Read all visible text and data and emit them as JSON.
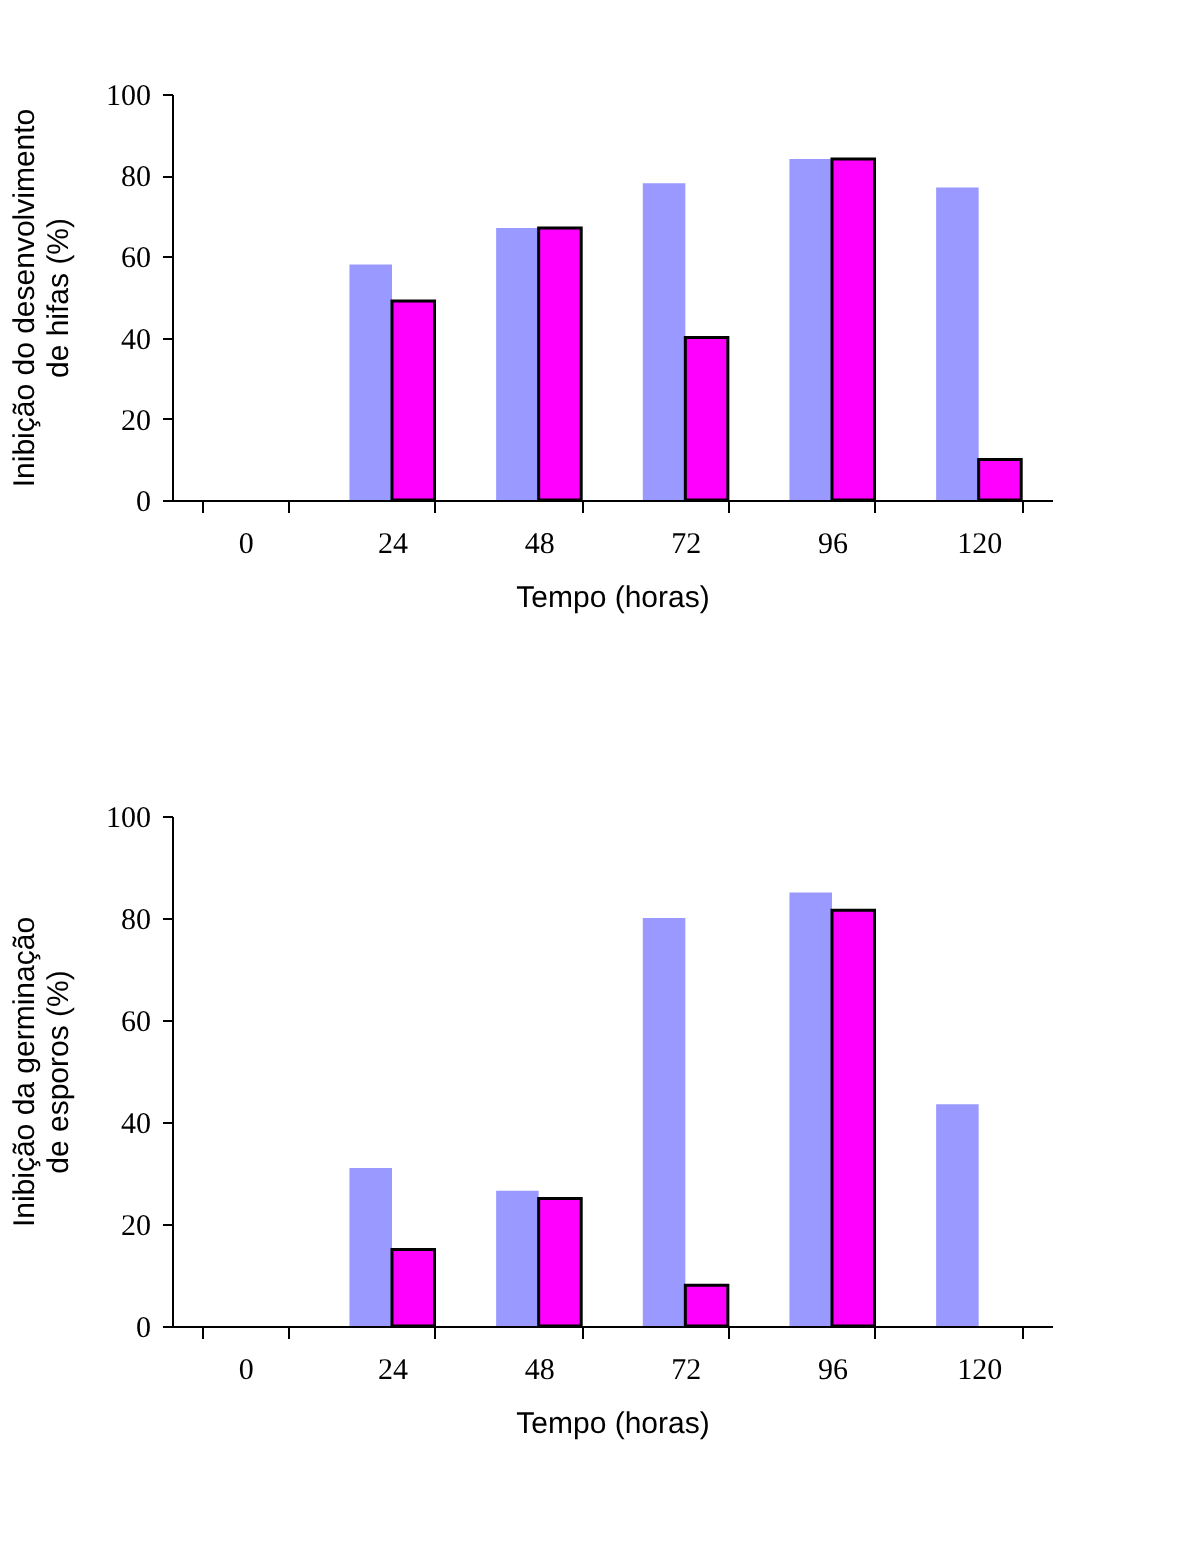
{
  "chart_data": [
    {
      "type": "bar",
      "xlabel": "Tempo (horas)",
      "ylabel": "Inibição do desenvolvimento de hifas (%)",
      "categories": [
        "0",
        "24",
        "48",
        "72",
        "96",
        "120"
      ],
      "ylim": [
        0,
        100
      ],
      "yticks": [
        0,
        20,
        40,
        60,
        80,
        100
      ],
      "grid": false,
      "legend": false,
      "series": [
        {
          "color": "#9999ff",
          "values": [
            null,
            58,
            67,
            78,
            84,
            77
          ]
        },
        {
          "color": "#ff00ff",
          "values": [
            null,
            49,
            67,
            40,
            84,
            10
          ]
        }
      ]
    },
    {
      "type": "bar",
      "xlabel": "Tempo (horas)",
      "ylabel": "Inibição da germinação de esporos (%)",
      "categories": [
        "0",
        "24",
        "48",
        "72",
        "96",
        "120"
      ],
      "ylim": [
        0,
        100
      ],
      "yticks": [
        0,
        20,
        40,
        60,
        80,
        100
      ],
      "grid": false,
      "legend": false,
      "series": [
        {
          "color": "#9999ff",
          "values": [
            null,
            31,
            26.5,
            80,
            85,
            43.5
          ]
        },
        {
          "color": "#ff00ff",
          "values": [
            null,
            15,
            25,
            8,
            81.5,
            null
          ]
        }
      ]
    }
  ]
}
